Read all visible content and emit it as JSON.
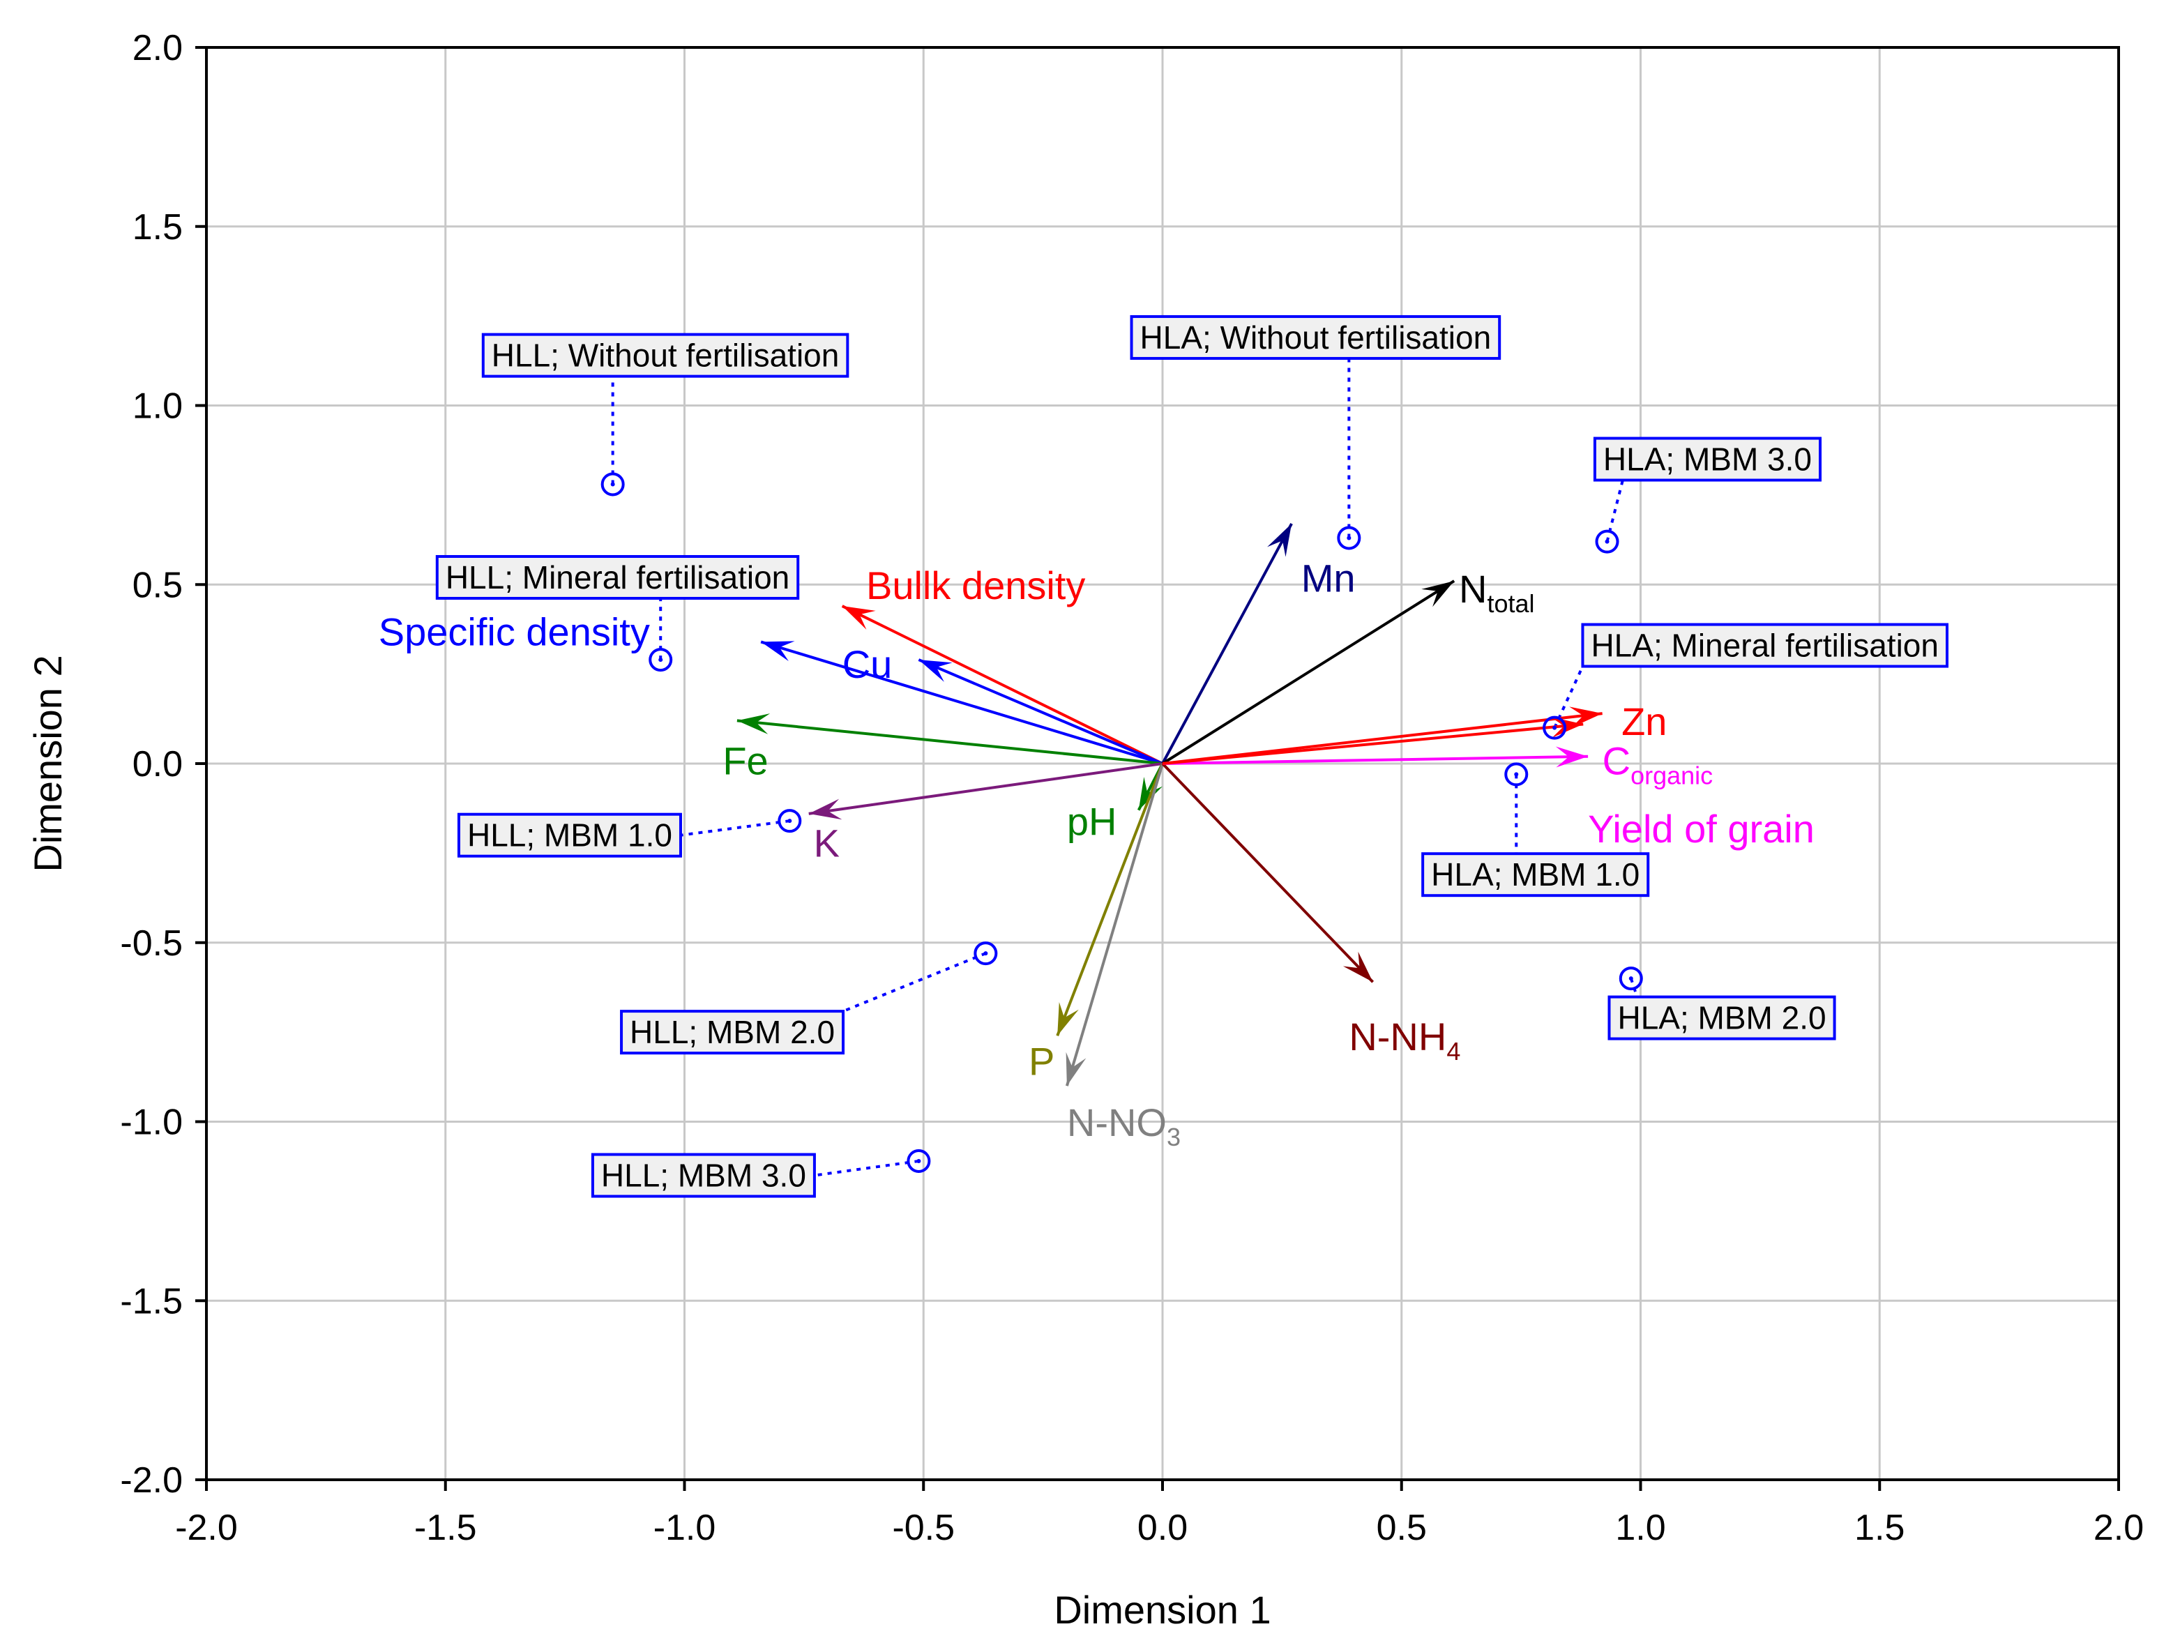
{
  "chart_data": {
    "type": "biplot",
    "xlabel": "Dimension   1",
    "ylabel": "Dimension   2",
    "xlim": [
      -2.0,
      2.0
    ],
    "ylim": [
      -2.0,
      2.0
    ],
    "grid": true,
    "x_ticks": [
      -2.0,
      -1.5,
      -1.0,
      -0.5,
      0.0,
      0.5,
      1.0,
      1.5,
      2.0
    ],
    "y_ticks": [
      -2.0,
      -1.5,
      -1.0,
      -0.5,
      0.0,
      0.5,
      1.0,
      1.5,
      2.0
    ],
    "x_tick_labels": [
      "-2.0",
      "-1.5",
      "-1.0",
      "-0.5",
      "0.0",
      "0.5",
      "1.0",
      "1.5",
      "2.0"
    ],
    "y_tick_labels": [
      "-2.0",
      "-1.5",
      "-1.0",
      "-0.5",
      "0.0",
      "0.5",
      "1.0",
      "1.5",
      "2.0"
    ],
    "variables": [
      {
        "name": "Bullk density",
        "sub": "",
        "x": -0.67,
        "y": 0.44,
        "color": "#ff0000",
        "label_x": -0.62,
        "label_y": 0.46,
        "anchor": "start"
      },
      {
        "name": "Specific density",
        "sub": "",
        "x": -0.84,
        "y": 0.34,
        "color": "#0000ff",
        "label_x": -1.64,
        "label_y": 0.33,
        "anchor": "start"
      },
      {
        "name": "Cu",
        "sub": "",
        "x": -0.51,
        "y": 0.29,
        "color": "#0000ff",
        "label_x": -0.67,
        "label_y": 0.24,
        "anchor": "start"
      },
      {
        "name": "Fe",
        "sub": "",
        "x": -0.89,
        "y": 0.12,
        "color": "#008000",
        "label_x": -0.92,
        "label_y": -0.03,
        "anchor": "start"
      },
      {
        "name": "K",
        "sub": "",
        "x": -0.74,
        "y": -0.14,
        "color": "#7b1a7b",
        "label_x": -0.73,
        "label_y": -0.26,
        "anchor": "start"
      },
      {
        "name": "pH",
        "sub": "",
        "x": -0.05,
        "y": -0.13,
        "color": "#008000",
        "label_x": -0.2,
        "label_y": -0.2,
        "anchor": "start"
      },
      {
        "name": "P",
        "sub": "",
        "x": -0.22,
        "y": -0.76,
        "color": "#808000",
        "label_x": -0.28,
        "label_y": -0.87,
        "anchor": "start"
      },
      {
        "name": "N-NO",
        "sub": "3",
        "x": -0.2,
        "y": -0.9,
        "color": "#808080",
        "label_x": -0.2,
        "label_y": -1.04,
        "anchor": "start"
      },
      {
        "name": "N-NH",
        "sub": "4",
        "x": 0.44,
        "y": -0.61,
        "color": "#800000",
        "label_x": 0.39,
        "label_y": -0.8,
        "anchor": "start"
      },
      {
        "name": "Mn",
        "sub": "",
        "x": 0.27,
        "y": 0.67,
        "color": "#000080",
        "label_x": 0.29,
        "label_y": 0.48,
        "anchor": "start"
      },
      {
        "name": "N",
        "sub": "total",
        "x": 0.61,
        "y": 0.51,
        "color": "#000000",
        "label_x": 0.62,
        "label_y": 0.45,
        "anchor": "start"
      },
      {
        "name": "Zn",
        "sub": "",
        "x": 0.92,
        "y": 0.14,
        "color": "#ff0000",
        "label_x": 0.96,
        "label_y": 0.08,
        "anchor": "start"
      },
      {
        "name": "C",
        "sub": "organic",
        "x": 0.89,
        "y": 0.02,
        "color": "#ff00ff",
        "label_x": 0.92,
        "label_y": -0.03,
        "anchor": "start"
      },
      {
        "name": "Yield of grain",
        "sub": "",
        "x": 0.88,
        "y": 0.11,
        "color": "#ff0000",
        "label_x": 0.89,
        "label_y": -0.22,
        "label_color": "#ff00ff",
        "anchor": "start",
        "label": "Yield of grain"
      }
    ],
    "observations": [
      {
        "label": "HLL; Without fertilisation",
        "x": -1.15,
        "y": 0.78,
        "box_x": -1.04,
        "box_y": 1.14
      },
      {
        "label": "HLL; Mineral fertilisation",
        "x": -1.05,
        "y": 0.29,
        "box_x": -1.14,
        "box_y": 0.52
      },
      {
        "label": "HLL; MBM 1.0",
        "x": -0.78,
        "y": -0.16,
        "box_x": -1.24,
        "box_y": -0.2
      },
      {
        "label": "HLL; MBM 2.0",
        "x": -0.37,
        "y": -0.53,
        "box_x": -0.9,
        "box_y": -0.75
      },
      {
        "label": "HLL; MBM 3.0",
        "x": -0.51,
        "y": -1.11,
        "box_x": -0.96,
        "box_y": -1.15
      },
      {
        "label": "HLA; Without fertilisation",
        "x": 0.39,
        "y": 0.63,
        "box_x": 0.32,
        "box_y": 1.19
      },
      {
        "label": "HLA; MBM 3.0",
        "x": 0.93,
        "y": 0.62,
        "box_x": 1.14,
        "box_y": 0.85
      },
      {
        "label": "HLA; Mineral fertilisation",
        "x": 0.82,
        "y": 0.1,
        "box_x": 1.26,
        "box_y": 0.33
      },
      {
        "label": "HLA; MBM 1.0",
        "x": 0.74,
        "y": -0.03,
        "box_x": 0.78,
        "box_y": -0.31
      },
      {
        "label": "HLA; MBM 2.0",
        "x": 0.98,
        "y": -0.6,
        "box_x": 1.17,
        "box_y": -0.71
      }
    ]
  }
}
